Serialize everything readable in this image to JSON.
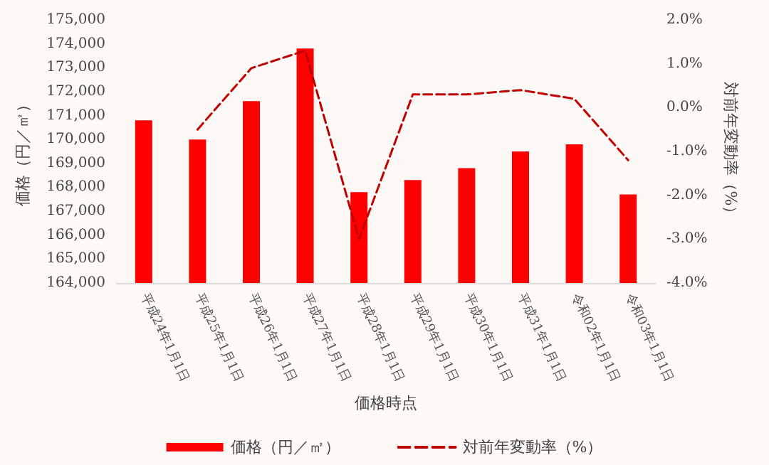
{
  "chart_data": {
    "type": "bar",
    "xlabel": "価格時点",
    "ylabel": "価格（円／㎡）",
    "y2label": "対前年変動率（%）",
    "categories": [
      "平成24年1月1日",
      "平成25年1月1日",
      "平成26年1月1日",
      "平成27年1月1日",
      "平成28年1月1日",
      "平成29年1月1日",
      "平成30年1月1日",
      "平成31年1月1日",
      "令和02年1月1日",
      "令和03年1月1日"
    ],
    "series": [
      {
        "name": "価格（円／㎡）",
        "color": "#ff0000",
        "values": [
          170800,
          170000,
          171600,
          173800,
          167800,
          168300,
          168800,
          169500,
          169800,
          167700
        ]
      },
      {
        "name": "対前年変動率（%）",
        "type": "line",
        "axis": "y2",
        "color": "#c00000",
        "line_style": "dashed",
        "marker": "none",
        "values": [
          null,
          -0.5,
          0.9,
          1.3,
          -3.0,
          0.3,
          0.3,
          0.4,
          0.2,
          -1.2
        ]
      }
    ],
    "ylim": [
      164000,
      175000
    ],
    "yticks": [
      {
        "value": 164000,
        "label": "164,000"
      },
      {
        "value": 165000,
        "label": "165,000"
      },
      {
        "value": 166000,
        "label": "166,000"
      },
      {
        "value": 167000,
        "label": "167,000"
      },
      {
        "value": 168000,
        "label": "168,000"
      },
      {
        "value": 169000,
        "label": "169,000"
      },
      {
        "value": 170000,
        "label": "170,000"
      },
      {
        "value": 171000,
        "label": "171,000"
      },
      {
        "value": 172000,
        "label": "172,000"
      },
      {
        "value": 173000,
        "label": "173,000"
      },
      {
        "value": 174000,
        "label": "174,000"
      },
      {
        "value": 175000,
        "label": "175,000"
      }
    ],
    "y2lim": [
      -4,
      2
    ],
    "y2ticks": [
      {
        "value": -4,
        "label": "-4.0%"
      },
      {
        "value": -3,
        "label": "-3.0%"
      },
      {
        "value": -2,
        "label": "-2.0%"
      },
      {
        "value": -1,
        "label": "-1.0%"
      },
      {
        "value": 0,
        "label": "0.0%"
      },
      {
        "value": 1,
        "label": "1.0%"
      },
      {
        "value": 2,
        "label": "2.0%"
      }
    ],
    "grid": false,
    "legend": "bottom"
  }
}
